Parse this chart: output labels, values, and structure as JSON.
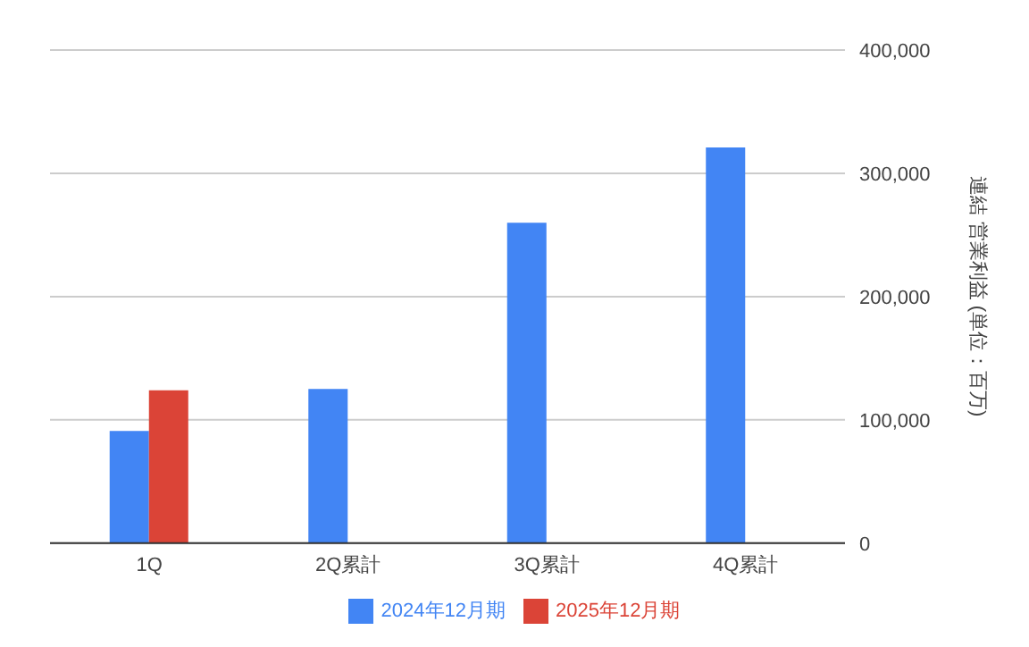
{
  "chart_data": {
    "type": "bar",
    "ylabel": "連結 営業利益 (単位：百万)",
    "categories": [
      "1Q",
      "2Q累計",
      "3Q累計",
      "4Q累計"
    ],
    "series": [
      {
        "name": "2024年12月期",
        "color": "#4285f4",
        "values": [
          91000,
          125000,
          260000,
          321000
        ]
      },
      {
        "name": "2025年12月期",
        "color": "#db4437",
        "values": [
          124000,
          null,
          null,
          null
        ]
      }
    ],
    "ylim": [
      0,
      400000
    ],
    "yticks": [
      {
        "value": 0,
        "label": "0"
      },
      {
        "value": 100000,
        "label": "100,000"
      },
      {
        "value": 200000,
        "label": "200,000"
      },
      {
        "value": 300000,
        "label": "300,000"
      },
      {
        "value": 400000,
        "label": "400,000"
      }
    ],
    "grid": "y",
    "legend": "bottom"
  }
}
